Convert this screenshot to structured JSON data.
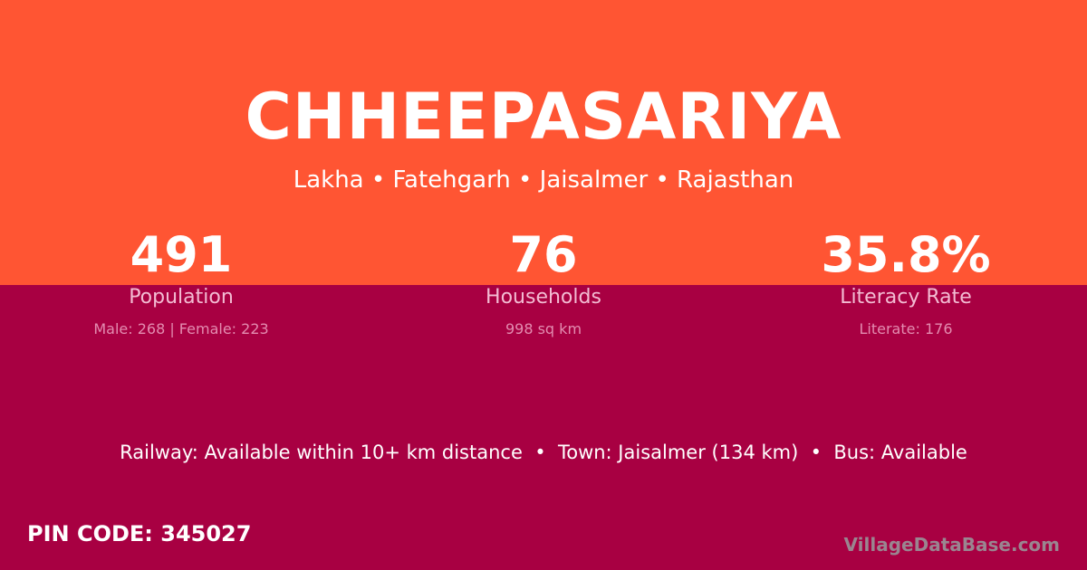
{
  "village": {
    "name": "CHHEEPASARIYA",
    "location": "Lakha • Fatehgarh • Jaisalmer • Rajasthan"
  },
  "stats": [
    {
      "value": "491",
      "label": "Population",
      "detail": "Male: 268 | Female: 223"
    },
    {
      "value": "76",
      "label": "Households",
      "detail": "998 sq km"
    },
    {
      "value": "35.8%",
      "label": "Literacy Rate",
      "detail": "Literate: 176"
    }
  ],
  "connectivity": "Railway: Available within 10+ km distance  •  Town: Jaisalmer (134 km)  •  Bus: Available",
  "pin_code": "PIN CODE: 345027",
  "brand": "VillageDataBase.com",
  "colors": {
    "top": "#ff5533",
    "bottom": "#a80042"
  }
}
